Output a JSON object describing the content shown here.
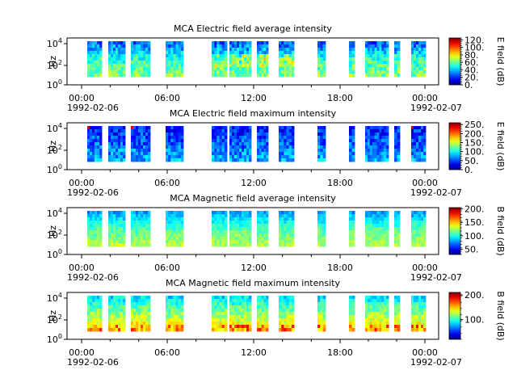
{
  "chart_data": [
    {
      "type": "heatmap",
      "title": "MCA  Electric field average intensity",
      "ylabel": "Hz",
      "y_scale": "log",
      "ylim": [
        1,
        40000
      ],
      "ytick_labels": [
        "10^0",
        "10^2",
        "10^4"
      ],
      "xtick_labels": [
        "00:00",
        "06:00",
        "12:00",
        "18:00",
        "00:00"
      ],
      "date_labels": [
        "1992-02-06",
        "1992-02-07"
      ],
      "colorbar_label": "E field (dB)",
      "colorbar_ticks": [
        "0.",
        "20.",
        "40.",
        "60.",
        "80.",
        "100.",
        "120."
      ],
      "colorbar_range": [
        0,
        125
      ],
      "colormap": "jet-like rainbow"
    },
    {
      "type": "heatmap",
      "title": "MCA  Electric field maximum intensity",
      "ylabel": "Hz",
      "y_scale": "log",
      "ylim": [
        1,
        40000
      ],
      "ytick_labels": [
        "10^0",
        "10^2",
        "10^4"
      ],
      "xtick_labels": [
        "00:00",
        "06:00",
        "12:00",
        "18:00",
        "00:00"
      ],
      "date_labels": [
        "1992-02-06",
        "1992-02-07"
      ],
      "colorbar_label": "E field (dB)",
      "colorbar_ticks": [
        "0.",
        "50.",
        "100.",
        "150.",
        "200.",
        "250."
      ],
      "colorbar_range": [
        0,
        260
      ],
      "colormap": "jet-like rainbow"
    },
    {
      "type": "heatmap",
      "title": "MCA  Magnetic field average intensity",
      "ylabel": "Hz",
      "y_scale": "log",
      "ylim": [
        1,
        40000
      ],
      "ytick_labels": [
        "10^0",
        "10^2",
        "10^4"
      ],
      "xtick_labels": [
        "00:00",
        "06:00",
        "12:00",
        "18:00",
        "00:00"
      ],
      "date_labels": [
        "1992-02-06",
        "1992-02-07"
      ],
      "colorbar_label": "B field (dB)",
      "colorbar_ticks": [
        "50.",
        "100.",
        "150.",
        "200."
      ],
      "colorbar_range": [
        30,
        205
      ],
      "colormap": "jet-like rainbow"
    },
    {
      "type": "heatmap",
      "title": "MCA  Magnetic field maximum intensity",
      "ylabel": "Hz",
      "y_scale": "log",
      "ylim": [
        1,
        40000
      ],
      "ytick_labels": [
        "10^0",
        "10^2",
        "10^4"
      ],
      "xtick_labels": [
        "00:00",
        "06:00",
        "12:00",
        "18:00",
        "00:00"
      ],
      "date_labels": [
        "1992-02-06",
        "1992-02-07"
      ],
      "colorbar_label": "B field (dB)",
      "colorbar_ticks": [
        "100.",
        "200."
      ],
      "colorbar_range": [
        20,
        210
      ],
      "colormap": "jet-like rainbow"
    }
  ]
}
